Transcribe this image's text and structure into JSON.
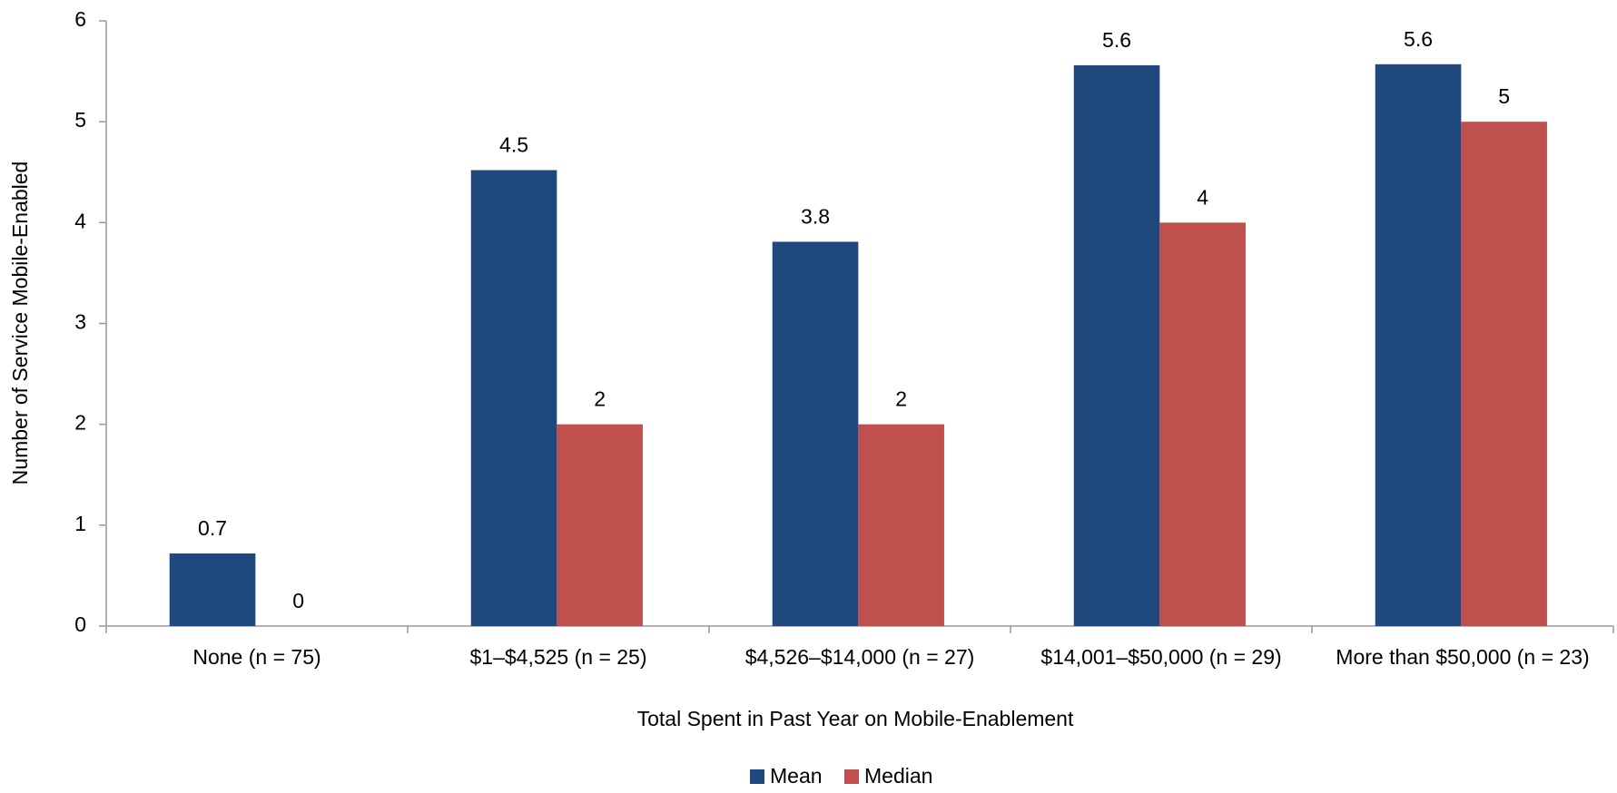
{
  "chart_data": {
    "type": "bar",
    "x_label": "Total Spent in Past Year on Mobile-Enablement",
    "y_label": "Number of Service Mobile-Enabled",
    "categories": [
      "None (n = 75)",
      "$1–$4,525 (n = 25)",
      "$4,526–$14,000 (n = 27)",
      "$14,001–$50,000 (n = 29)",
      "More than $50,000 (n = 23)"
    ],
    "series": [
      {
        "name": "Mean",
        "color": "#1f497d",
        "values": [
          0.72,
          4.52,
          3.81,
          5.56,
          5.57
        ],
        "value_labels": [
          "0.7",
          "4.5",
          "3.8",
          "5.6",
          "5.6"
        ]
      },
      {
        "name": "Median",
        "color": "#c0504d",
        "values": [
          0,
          2,
          2,
          4,
          5
        ]
      }
    ],
    "ylim": [
      0,
      6
    ],
    "yticks": [
      0,
      1,
      2,
      3,
      4,
      5,
      6
    ],
    "grid": false,
    "legend": "bottom"
  }
}
